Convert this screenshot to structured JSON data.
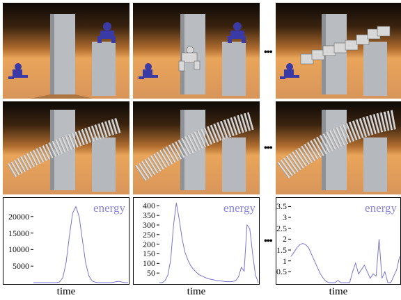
{
  "figure": {
    "ellipsis": "•••",
    "top_row": [
      "frame-1",
      "frame-2",
      "frame-n"
    ],
    "middle_row": [
      "frame-1",
      "frame-2",
      "frame-n"
    ],
    "colors": {
      "legend": "#8a86d6",
      "curve": "#7a74d0",
      "robot": "#3a3aa6",
      "pillar": "#b9bcc0"
    }
  },
  "plots": [
    {
      "legend": "energy",
      "xlabel": "time",
      "yticks": [
        "20000",
        "15000",
        "10000",
        "5000"
      ]
    },
    {
      "legend": "energy",
      "xlabel": "time",
      "yticks": [
        "400",
        "350",
        "300",
        "250",
        "200",
        "150",
        "100",
        "50"
      ]
    },
    {
      "legend": "energy",
      "xlabel": "time",
      "yticks": [
        "3.5",
        "3",
        "2.5",
        "2",
        "1.5",
        "1",
        "0.5"
      ]
    }
  ],
  "chart_data": [
    {
      "type": "line",
      "series": [
        {
          "name": "energy",
          "values": [
            0,
            0,
            0,
            0,
            0,
            0,
            0,
            0,
            200,
            1500,
            6000,
            14000,
            21000,
            23000,
            20000,
            13000,
            6000,
            2000,
            500,
            100,
            0,
            0,
            0,
            0,
            0,
            200,
            400,
            200,
            0,
            0
          ]
        }
      ],
      "xlabel": "time",
      "ylim": [
        0,
        25000
      ]
    },
    {
      "type": "line",
      "series": [
        {
          "name": "energy",
          "values": [
            0,
            0,
            10,
            40,
            120,
            300,
            415,
            330,
            230,
            160,
            120,
            90,
            70,
            55,
            42,
            35,
            28,
            22,
            18,
            15,
            12,
            10,
            8,
            6,
            5,
            5,
            6,
            10,
            30,
            80,
            60,
            300,
            280,
            150,
            40,
            0
          ]
        }
      ],
      "xlabel": "time",
      "ylim": [
        0,
        430
      ]
    },
    {
      "type": "line",
      "series": [
        {
          "name": "energy",
          "values": [
            1.2,
            1.4,
            1.6,
            1.75,
            1.8,
            1.75,
            1.6,
            1.3,
            1,
            0.7,
            0.4,
            0.2,
            0.05,
            0,
            0,
            0,
            0.1,
            0,
            0,
            0,
            0,
            0.5,
            0.9,
            0.4,
            0.6,
            0.8,
            0.5,
            0.2,
            0.4,
            0.3,
            2.0,
            0.2,
            0.5,
            0,
            0,
            0.3,
            0.6,
            1.2
          ]
        }
      ],
      "xlabel": "time",
      "ylim": [
        0,
        3.8
      ]
    }
  ]
}
